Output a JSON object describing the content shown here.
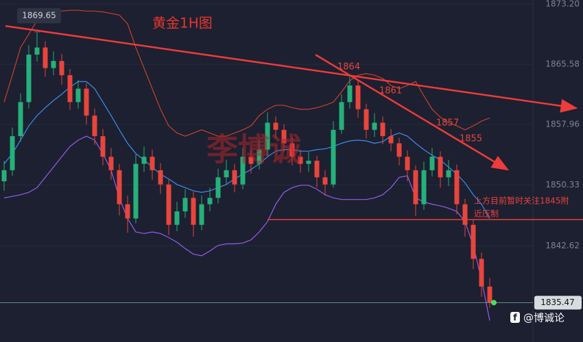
{
  "chart_data": {
    "type": "candlestick",
    "title": "黄金1H图",
    "watermark": "李博诚",
    "footer": "@博诚论",
    "note": [
      "上方目前暂时关注1845附",
      "近压制"
    ],
    "level_labels": [
      1864,
      1861,
      1857,
      1855
    ],
    "high_label": 1869.65,
    "last_price": 1835.47,
    "ylim": [
      1830.5,
      1873.7
    ],
    "yticks": [
      {
        "value": 1873.2,
        "label": "1873.20"
      },
      1865.58,
      1857.96,
      1850.33,
      1842.62
    ],
    "grid": true,
    "up_color": "#26b07a",
    "down_color": "#e8453c",
    "open": [
      1850.8,
      1852.2,
      1856.5,
      1860.8,
      1866.8,
      1867.7,
      1865.1,
      1866.0,
      1864.2,
      1860.8,
      1862.5,
      1859.1,
      1856.5,
      1853.9,
      1852.2,
      1847.9,
      1846.1,
      1853.0,
      1853.9,
      1852.2,
      1850.4,
      1845.3,
      1847.0,
      1848.7,
      1845.3,
      1847.9,
      1848.7,
      1851.3,
      1852.2,
      1850.4,
      1853.9,
      1853.0,
      1854.8,
      1858.2,
      1857.3,
      1855.6,
      1853.9,
      1853.0,
      1853.4,
      1851.3,
      1850.4,
      1857.3,
      1860.8,
      1862.9,
      1859.9,
      1857.3,
      1858.2,
      1856.5,
      1855.6,
      1853.9,
      1852.2,
      1847.9,
      1852.2,
      1853.9,
      1851.3,
      1852.2,
      1847.9,
      1845.3,
      1841.0,
      1837.5
    ],
    "high": [
      1853.4,
      1857.6,
      1861.9,
      1868.0,
      1869.6,
      1868.5,
      1867.2,
      1866.9,
      1865.0,
      1863.6,
      1863.2,
      1860.0,
      1857.4,
      1855.0,
      1853.0,
      1849.0,
      1854.2,
      1855.2,
      1854.8,
      1853.1,
      1851.0,
      1848.2,
      1849.8,
      1849.5,
      1849.0,
      1850.0,
      1852.4,
      1853.5,
      1853.0,
      1855.0,
      1854.8,
      1856.0,
      1859.5,
      1859.0,
      1858.0,
      1856.4,
      1854.8,
      1854.5,
      1854.0,
      1852.2,
      1858.4,
      1861.8,
      1864.0,
      1863.6,
      1860.6,
      1859.4,
      1859.0,
      1857.4,
      1856.3,
      1854.7,
      1852.8,
      1853.3,
      1855.0,
      1854.6,
      1853.5,
      1852.9,
      1848.6,
      1846.0,
      1841.8,
      1838.6
    ],
    "low": [
      1849.6,
      1851.5,
      1855.8,
      1860.0,
      1865.9,
      1864.0,
      1864.2,
      1863.0,
      1859.8,
      1860.0,
      1858.0,
      1855.4,
      1852.8,
      1851.0,
      1846.5,
      1844.3,
      1845.5,
      1852.0,
      1851.0,
      1849.2,
      1844.0,
      1844.5,
      1846.2,
      1843.8,
      1844.6,
      1847.0,
      1848.0,
      1850.5,
      1849.4,
      1849.8,
      1851.8,
      1852.3,
      1854.0,
      1856.2,
      1854.5,
      1852.8,
      1851.9,
      1852.0,
      1850.0,
      1849.0,
      1850.0,
      1856.8,
      1860.0,
      1858.8,
      1856.2,
      1856.4,
      1855.5,
      1854.6,
      1852.8,
      1850.8,
      1846.4,
      1847.2,
      1851.4,
      1850.0,
      1850.2,
      1846.6,
      1843.8,
      1839.7,
      1836.2,
      1834.8
    ],
    "close": [
      1852.2,
      1856.5,
      1860.8,
      1866.8,
      1867.7,
      1865.1,
      1866.0,
      1864.2,
      1860.8,
      1862.5,
      1859.1,
      1856.5,
      1853.9,
      1852.2,
      1847.9,
      1846.1,
      1853.0,
      1853.9,
      1852.2,
      1850.4,
      1845.3,
      1847.0,
      1848.7,
      1845.3,
      1847.9,
      1848.7,
      1851.3,
      1852.2,
      1850.4,
      1853.9,
      1853.0,
      1854.8,
      1858.2,
      1857.3,
      1855.6,
      1853.9,
      1853.0,
      1853.4,
      1851.3,
      1850.4,
      1857.3,
      1860.8,
      1862.9,
      1859.9,
      1857.3,
      1858.2,
      1856.5,
      1855.6,
      1853.9,
      1852.2,
      1847.9,
      1852.2,
      1853.9,
      1851.3,
      1852.2,
      1847.9,
      1845.3,
      1841.0,
      1837.5,
      1835.5
    ],
    "series": [
      {
        "color": "#c8412f",
        "values": [
          1860.8,
          1864.2,
          1867.7,
          1869.4,
          1871.1,
          1872.0,
          1872.2,
          1872.3,
          1872.4,
          1872.4,
          1872.3,
          1872.3,
          1872.2,
          1872.0,
          1871.8,
          1870.7,
          1867.7,
          1865.1,
          1862.5,
          1859.9,
          1857.8,
          1856.9,
          1856.5,
          1856.9,
          1857.3,
          1856.9,
          1856.5,
          1856.5,
          1856.9,
          1857.3,
          1857.8,
          1859.1,
          1859.9,
          1860.4,
          1860.4,
          1860.1,
          1859.9,
          1859.9,
          1860.1,
          1860.4,
          1860.8,
          1862.1,
          1863.5,
          1864.2,
          1864.4,
          1864.2,
          1863.8,
          1862.9,
          1862.5,
          1862.9,
          1863.4,
          1861.6,
          1859.9,
          1858.9,
          1858.2,
          1857.8,
          1857.3,
          1857.8,
          1858.4,
          1858.8
        ]
      },
      {
        "color": "#3f8ef0",
        "values": [
          1853.0,
          1854.3,
          1856.0,
          1857.8,
          1859.1,
          1860.1,
          1861.0,
          1861.8,
          1862.7,
          1863.4,
          1863.4,
          1862.5,
          1860.8,
          1859.1,
          1857.3,
          1855.6,
          1854.3,
          1853.5,
          1852.6,
          1851.7,
          1851.1,
          1850.4,
          1850.0,
          1849.6,
          1849.4,
          1849.6,
          1850.0,
          1850.4,
          1851.1,
          1851.7,
          1852.3,
          1853.0,
          1853.9,
          1854.6,
          1854.8,
          1854.8,
          1854.6,
          1854.6,
          1854.8,
          1854.9,
          1855.2,
          1855.6,
          1855.9,
          1856.0,
          1855.9,
          1855.6,
          1855.8,
          1856.5,
          1856.9,
          1856.5,
          1855.6,
          1854.8,
          1854.1,
          1853.5,
          1852.6,
          1851.7,
          1850.6,
          1849.1,
          1847.9,
          1846.1
        ]
      },
      {
        "color": "#9b5cf0",
        "values": [
          1848.7,
          1848.9,
          1849.1,
          1849.4,
          1850.0,
          1851.3,
          1852.6,
          1853.9,
          1855.2,
          1856.0,
          1856.5,
          1856.0,
          1854.3,
          1852.2,
          1848.7,
          1846.1,
          1844.4,
          1844.2,
          1844.4,
          1844.2,
          1843.7,
          1843.1,
          1842.3,
          1841.6,
          1841.4,
          1842.0,
          1842.7,
          1842.9,
          1842.9,
          1843.0,
          1843.4,
          1844.4,
          1845.7,
          1847.9,
          1849.4,
          1850.0,
          1850.3,
          1850.3,
          1849.8,
          1849.1,
          1848.7,
          1848.5,
          1848.5,
          1848.5,
          1848.5,
          1848.7,
          1849.1,
          1850.0,
          1851.3,
          1851.5,
          1848.7,
          1848.2,
          1847.9,
          1847.7,
          1847.4,
          1847.0,
          1845.7,
          1842.7,
          1838.4,
          1833.2
        ]
      }
    ]
  }
}
